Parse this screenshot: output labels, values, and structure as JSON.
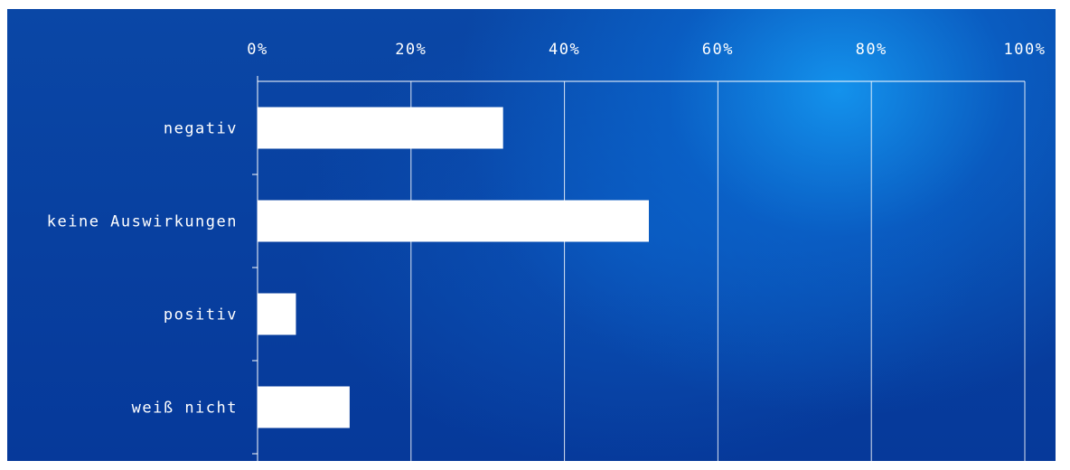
{
  "chart_data": {
    "type": "bar",
    "orientation": "horizontal",
    "categories": [
      "negativ",
      "keine Auswirkungen",
      "positiv",
      "weiß nicht"
    ],
    "values": [
      32,
      51,
      5,
      12
    ],
    "ticks": [
      "0%",
      "20%",
      "40%",
      "60%",
      "80%",
      "100%"
    ],
    "xlim": [
      0,
      100
    ],
    "axis_position": "top",
    "grid": true,
    "bar_color": "#ffffff",
    "background_color": "#0a47a6",
    "accent_color": "#1496f0"
  }
}
